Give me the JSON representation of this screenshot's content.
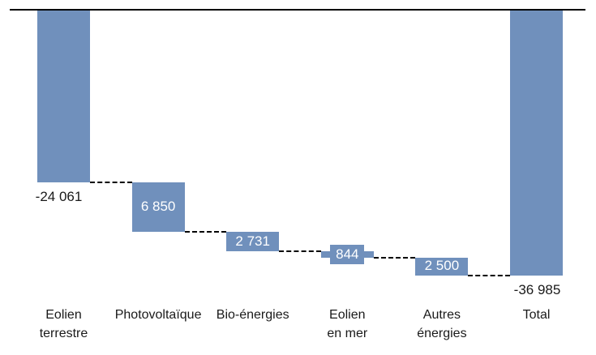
{
  "page": {
    "background": "#ffffff"
  },
  "colors": {
    "bar": "#7090BC",
    "connector": "#000000",
    "baseline": "#000000",
    "text": "#1a1a1a",
    "label_on_bar": "#ffffff"
  },
  "chart_data": {
    "type": "bar",
    "subtype": "waterfall",
    "title": "",
    "xlabel": "",
    "ylabel": "",
    "grid": "off",
    "legend": "none",
    "axis_shown": "top zero baseline only",
    "ylim": [
      -37000,
      0
    ],
    "baseline": 0,
    "bar_color": "#7090BC",
    "connector_style": "dashed",
    "categories": [
      "Eolien terrestre",
      "Photovoltaïque",
      "Bio-énergies",
      "Eolien en mer",
      "Autres énergies",
      "Total"
    ],
    "category_label_lines": [
      [
        "Eolien",
        "terrestre"
      ],
      [
        "Photovoltaïque"
      ],
      [
        "Bio-énergies"
      ],
      [
        "Eolien",
        "en mer"
      ],
      [
        "Autres",
        "énergies"
      ],
      [
        "Total"
      ]
    ],
    "data_labels": [
      "-24 061",
      "6 850",
      "2 731",
      "844",
      "2 500",
      "-36 985"
    ],
    "values": [
      -24061,
      6850,
      2731,
      844,
      2500,
      -36985
    ],
    "segment_start": [
      0,
      -24061,
      -30911,
      -33642,
      -34486,
      0
    ],
    "segment_end": [
      -24061,
      -30911,
      -33642,
      -34486,
      -36986,
      -36985
    ],
    "label_style": [
      "outside-below",
      "inside-white",
      "inside-white",
      "inside-boxed-white",
      "inside-white",
      "outside-below"
    ]
  }
}
